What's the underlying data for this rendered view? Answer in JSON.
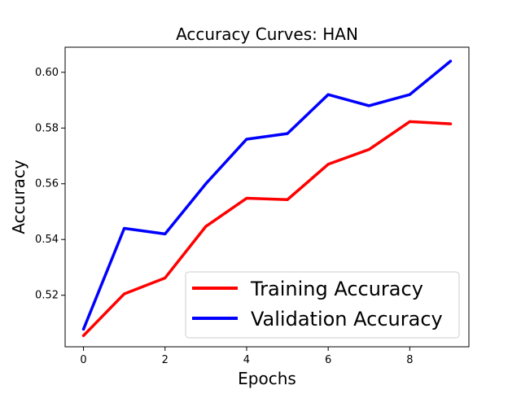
{
  "chart_data": {
    "type": "line",
    "title": "Accuracy Curves: HAN",
    "xlabel": "Epochs",
    "ylabel": "Accuracy",
    "x": [
      0,
      1,
      2,
      3,
      4,
      5,
      6,
      7,
      8,
      9
    ],
    "xlim": [
      -0.45,
      9.45
    ],
    "ylim": [
      0.5015,
      0.609
    ],
    "xticks": [
      0,
      2,
      4,
      6,
      8
    ],
    "yticks": [
      0.52,
      0.54,
      0.56,
      0.58,
      0.6
    ],
    "xtick_labels": [
      "0",
      "2",
      "4",
      "6",
      "8"
    ],
    "ytick_labels": [
      "0.52",
      "0.54",
      "0.56",
      "0.58",
      "0.60"
    ],
    "grid": false,
    "legend_position": "bottom-right",
    "series": [
      {
        "name": "Training Accuracy",
        "color": "#ff0000",
        "values": [
          0.5055,
          0.5205,
          0.5262,
          0.5447,
          0.5548,
          0.5543,
          0.567,
          0.5723,
          0.5823,
          0.5815
        ]
      },
      {
        "name": "Validation Accuracy",
        "color": "#0000ff",
        "values": [
          0.5078,
          0.544,
          0.542,
          0.56,
          0.576,
          0.578,
          0.592,
          0.588,
          0.592,
          0.604
        ]
      }
    ]
  }
}
